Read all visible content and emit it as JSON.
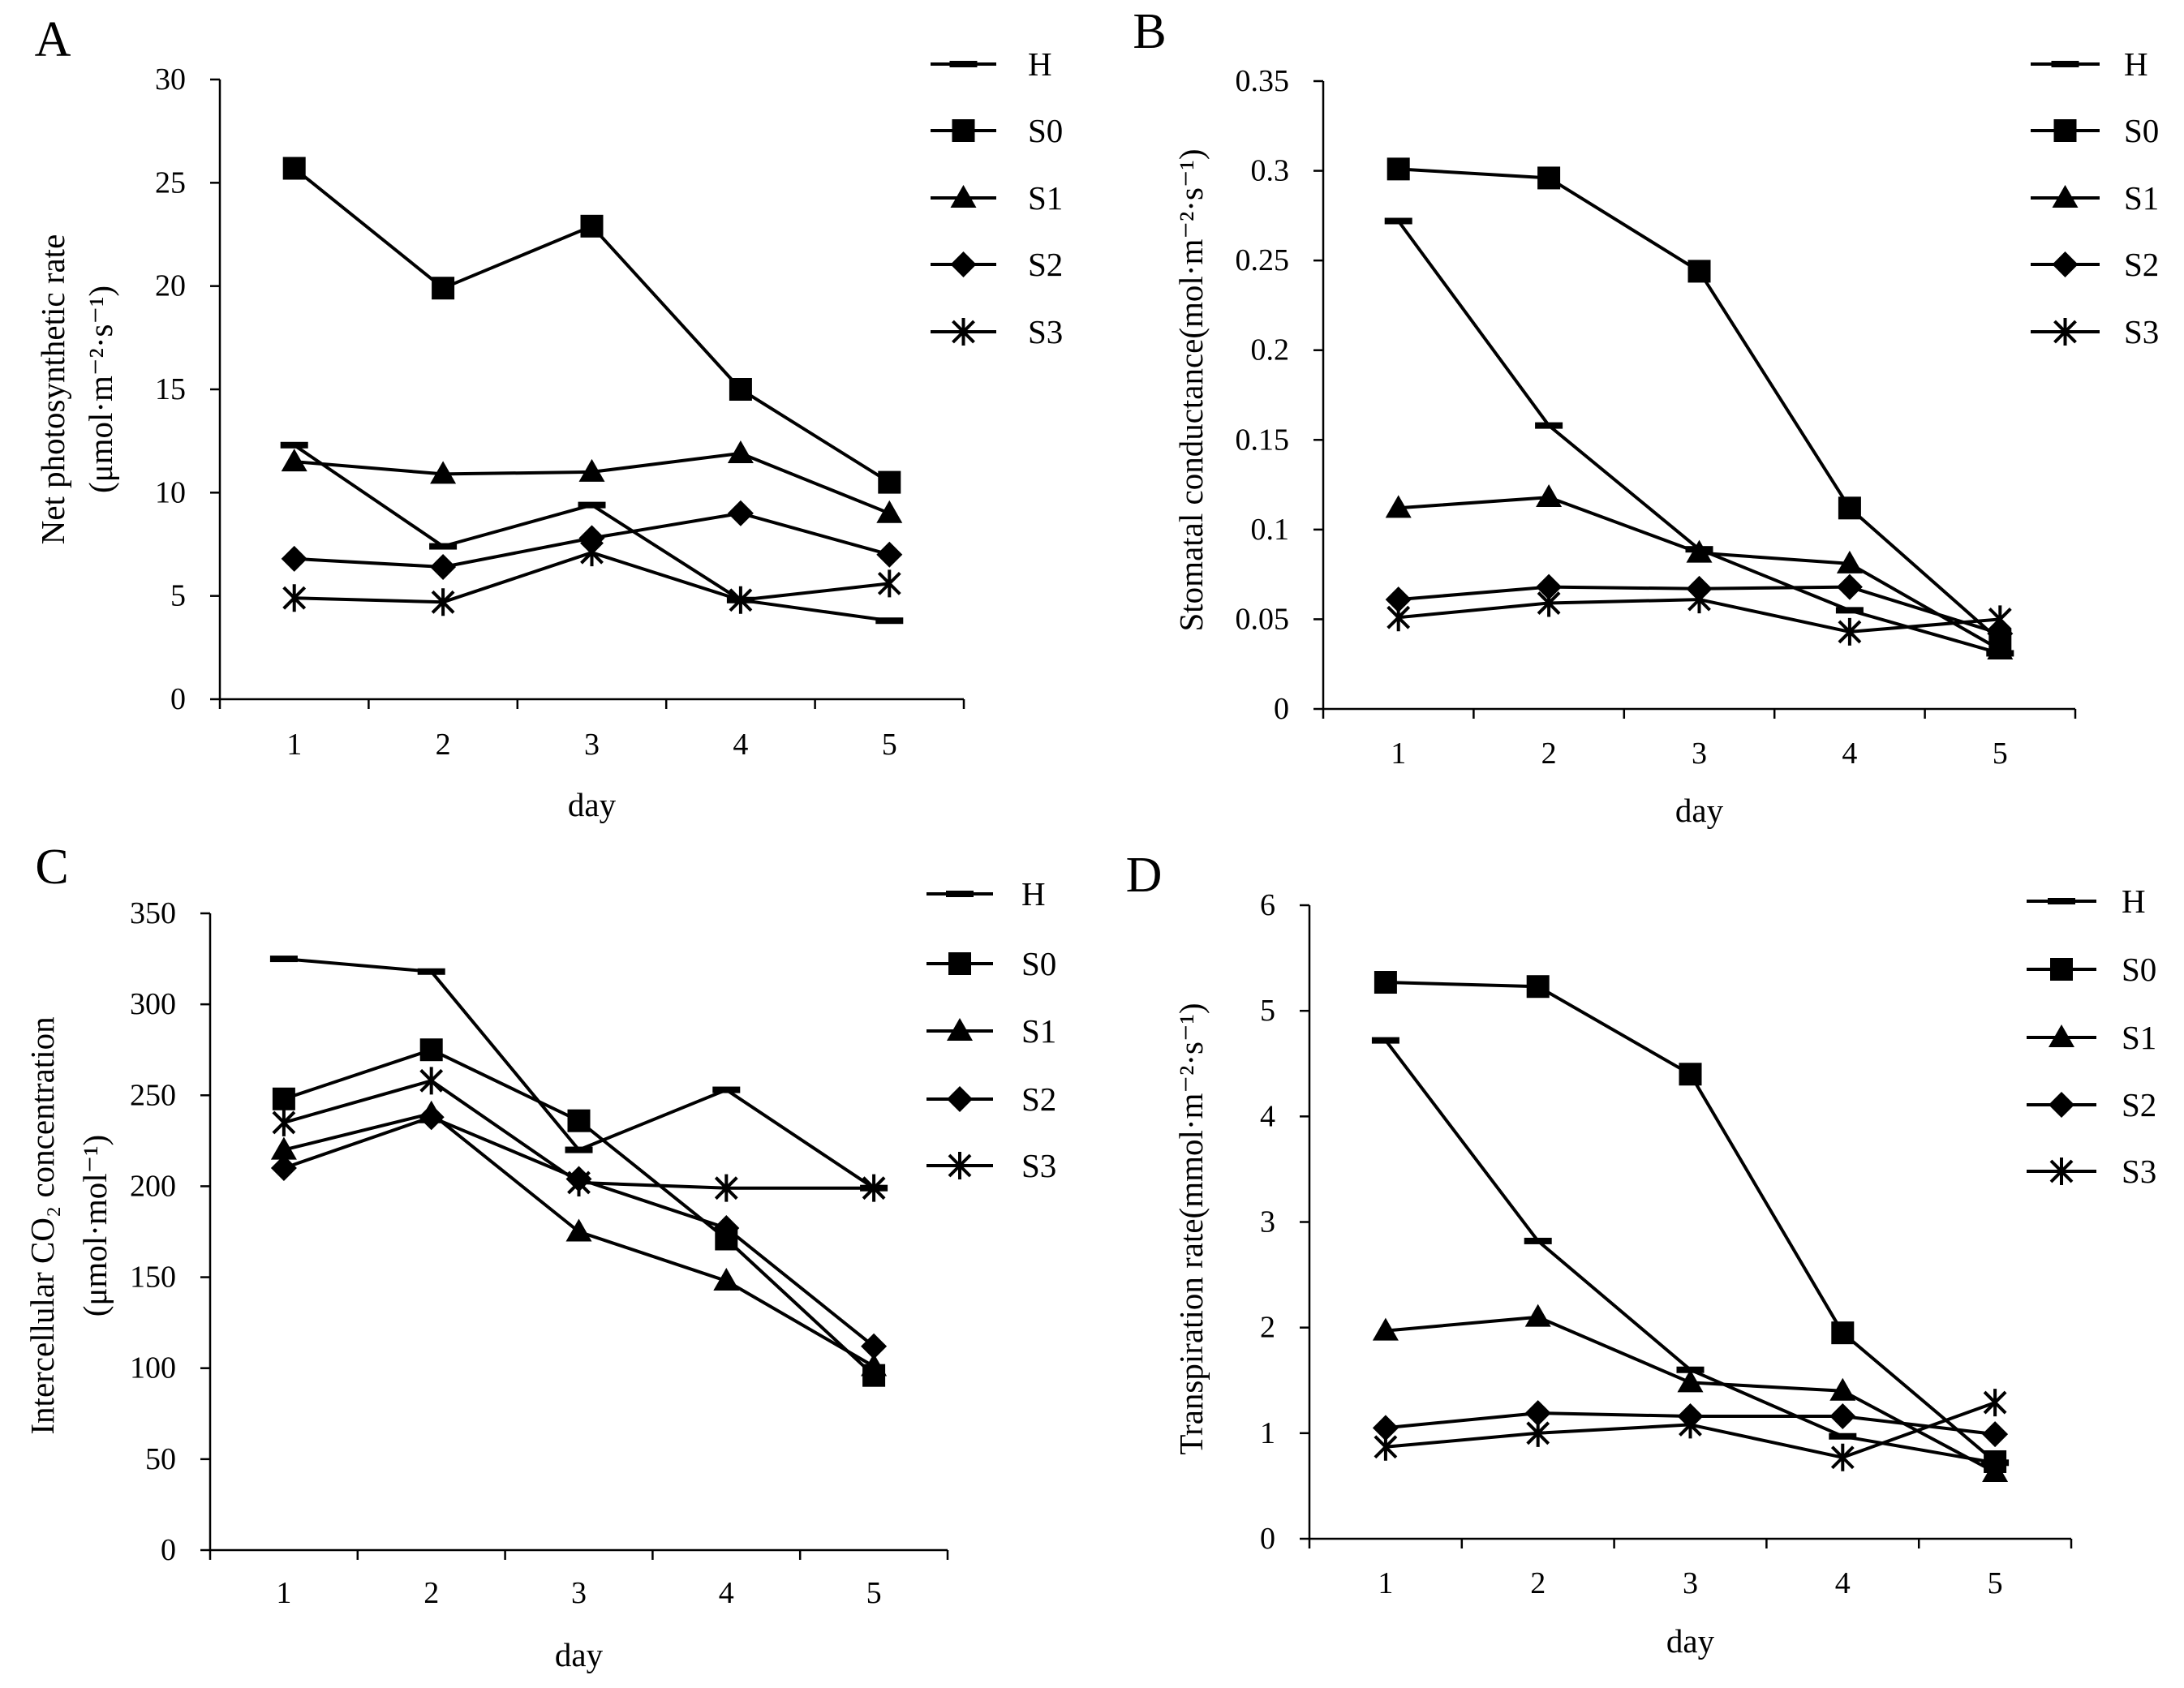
{
  "colors": {
    "ink": "#000000",
    "background": "#ffffff"
  },
  "chart_data": [
    {
      "panel_label": "A",
      "type": "line",
      "categories": [
        "1",
        "2",
        "3",
        "4",
        "5"
      ],
      "xlabel": "day",
      "ylabel": "Net photosynthetic rate",
      "ylabel_unit": "(μmol·m⁻²·s⁻¹)",
      "ylim": [
        0,
        30
      ],
      "yticks": [
        0,
        5,
        10,
        15,
        20,
        25,
        30
      ],
      "grid": false,
      "legend": "top-right",
      "series": [
        {
          "name": "H",
          "marker": "dash",
          "values": [
            12.3,
            7.4,
            9.4,
            4.8,
            3.8
          ]
        },
        {
          "name": "S0",
          "marker": "square",
          "values": [
            25.7,
            19.9,
            22.9,
            15.0,
            10.5
          ]
        },
        {
          "name": "S1",
          "marker": "triangle",
          "values": [
            11.5,
            10.9,
            11.0,
            11.9,
            9.0
          ]
        },
        {
          "name": "S2",
          "marker": "diamond",
          "values": [
            6.8,
            6.4,
            7.8,
            9.0,
            7.0
          ]
        },
        {
          "name": "S3",
          "marker": "asterisk",
          "values": [
            4.9,
            4.7,
            7.1,
            4.8,
            5.6
          ]
        }
      ]
    },
    {
      "panel_label": "B",
      "type": "line",
      "categories": [
        "1",
        "2",
        "3",
        "4",
        "5"
      ],
      "xlabel": "day",
      "ylabel": "Stomatal conductance(mol·m⁻²·s⁻¹)",
      "ylim": [
        0,
        0.35
      ],
      "yticks": [
        0,
        0.05,
        0.1,
        0.15,
        0.2,
        0.25,
        0.3,
        0.35
      ],
      "grid": false,
      "legend": "top-right",
      "series": [
        {
          "name": "H",
          "marker": "dash",
          "values": [
            0.272,
            0.158,
            0.089,
            0.055,
            0.031
          ]
        },
        {
          "name": "S0",
          "marker": "square",
          "values": [
            0.301,
            0.296,
            0.244,
            0.112,
            0.038
          ]
        },
        {
          "name": "S1",
          "marker": "triangle",
          "values": [
            0.112,
            0.118,
            0.087,
            0.081,
            0.033
          ]
        },
        {
          "name": "S2",
          "marker": "diamond",
          "values": [
            0.061,
            0.068,
            0.067,
            0.068,
            0.042
          ]
        },
        {
          "name": "S3",
          "marker": "asterisk",
          "values": [
            0.051,
            0.059,
            0.061,
            0.043,
            0.05
          ]
        }
      ]
    },
    {
      "panel_label": "C",
      "type": "line",
      "categories": [
        "1",
        "2",
        "3",
        "4",
        "5"
      ],
      "xlabel": "day",
      "ylabel": "Intercellular CO₂ concentration",
      "ylabel_unit": "(μmol·mol⁻¹)",
      "ylim": [
        0,
        350
      ],
      "yticks": [
        0,
        50,
        100,
        150,
        200,
        250,
        300,
        350
      ],
      "grid": false,
      "legend": "top-right",
      "series": [
        {
          "name": "H",
          "marker": "dash",
          "values": [
            325,
            318,
            220,
            253,
            199
          ]
        },
        {
          "name": "S0",
          "marker": "square",
          "values": [
            248,
            275,
            236,
            171,
            96
          ]
        },
        {
          "name": "S1",
          "marker": "triangle",
          "values": [
            220,
            240,
            175,
            148,
            101
          ]
        },
        {
          "name": "S2",
          "marker": "diamond",
          "values": [
            210,
            238,
            204,
            177,
            112
          ]
        },
        {
          "name": "S3",
          "marker": "asterisk",
          "values": [
            235,
            258,
            202,
            199,
            199
          ]
        }
      ]
    },
    {
      "panel_label": "D",
      "type": "line",
      "categories": [
        "1",
        "2",
        "3",
        "4",
        "5"
      ],
      "xlabel": "day",
      "ylabel": "Transpiration rate(mmol·m⁻²·s⁻¹)",
      "ylim": [
        0,
        6
      ],
      "yticks": [
        0,
        1,
        2,
        3,
        4,
        5,
        6
      ],
      "grid": false,
      "legend": "top-right",
      "series": [
        {
          "name": "H",
          "marker": "dash",
          "values": [
            4.72,
            2.82,
            1.6,
            0.97,
            0.72
          ]
        },
        {
          "name": "S0",
          "marker": "square",
          "values": [
            5.27,
            5.23,
            4.4,
            1.95,
            0.73
          ]
        },
        {
          "name": "S1",
          "marker": "triangle",
          "values": [
            1.97,
            2.1,
            1.48,
            1.4,
            0.63
          ]
        },
        {
          "name": "S2",
          "marker": "diamond",
          "values": [
            1.05,
            1.19,
            1.16,
            1.16,
            0.99
          ]
        },
        {
          "name": "S3",
          "marker": "asterisk",
          "values": [
            0.87,
            1.0,
            1.08,
            0.77,
            1.29
          ]
        }
      ]
    }
  ]
}
